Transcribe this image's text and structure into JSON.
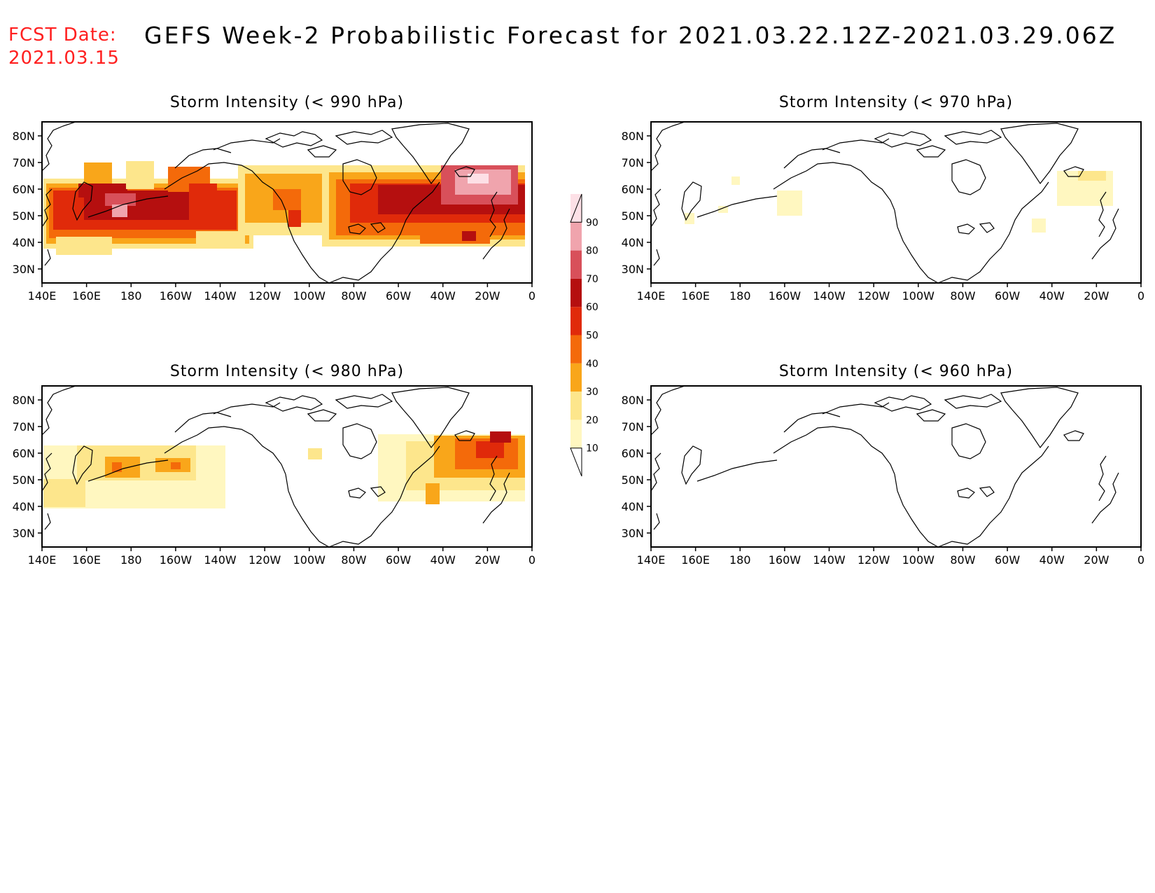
{
  "header": {
    "fcst_label": "FCST Date:",
    "fcst_date": "2021.03.15",
    "title": "GEFS Week-2 Probabilistic Forecast for 2021.03.22.12Z-2021.03.29.06Z"
  },
  "axes": {
    "x_ticks": [
      "140E",
      "160E",
      "180",
      "160W",
      "140W",
      "120W",
      "100W",
      "80W",
      "60W",
      "40W",
      "20W",
      "0"
    ],
    "y_ticks": [
      "80N",
      "70N",
      "60N",
      "50N",
      "40N",
      "30N"
    ]
  },
  "colorbar": {
    "levels": [
      "10",
      "20",
      "30",
      "40",
      "50",
      "60",
      "70",
      "80",
      "90"
    ],
    "colors": [
      "#fff7c0",
      "#fde68c",
      "#f9a61a",
      "#f46a0a",
      "#e02a0a",
      "#b50f0f",
      "#d8505a",
      "#f0a4ad",
      "#fde0e6"
    ]
  },
  "panels": [
    {
      "id": "p990",
      "title": "Storm Intensity (< 990 hPa)"
    },
    {
      "id": "p970",
      "title": "Storm Intensity (< 970 hPa)"
    },
    {
      "id": "p980",
      "title": "Storm Intensity (< 980 hPa)"
    },
    {
      "id": "p960",
      "title": "Storm Intensity (< 960 hPa)"
    }
  ],
  "chart_data": {
    "type": "heatmap",
    "description_units": "probability (%)",
    "x_range": [
      "140E",
      "0"
    ],
    "y_range": [
      "25N",
      "85N"
    ],
    "panels": [
      {
        "title": "Storm Intensity (< 990 hPa)",
        "field_max_percent": 90
      },
      {
        "title": "Storm Intensity (< 970 hPa)",
        "field_max_percent": 20
      },
      {
        "title": "Storm Intensity (< 980 hPa)",
        "field_max_percent": 70
      },
      {
        "title": "Storm Intensity (< 960 hPa)",
        "field_max_percent": 10
      }
    ]
  }
}
